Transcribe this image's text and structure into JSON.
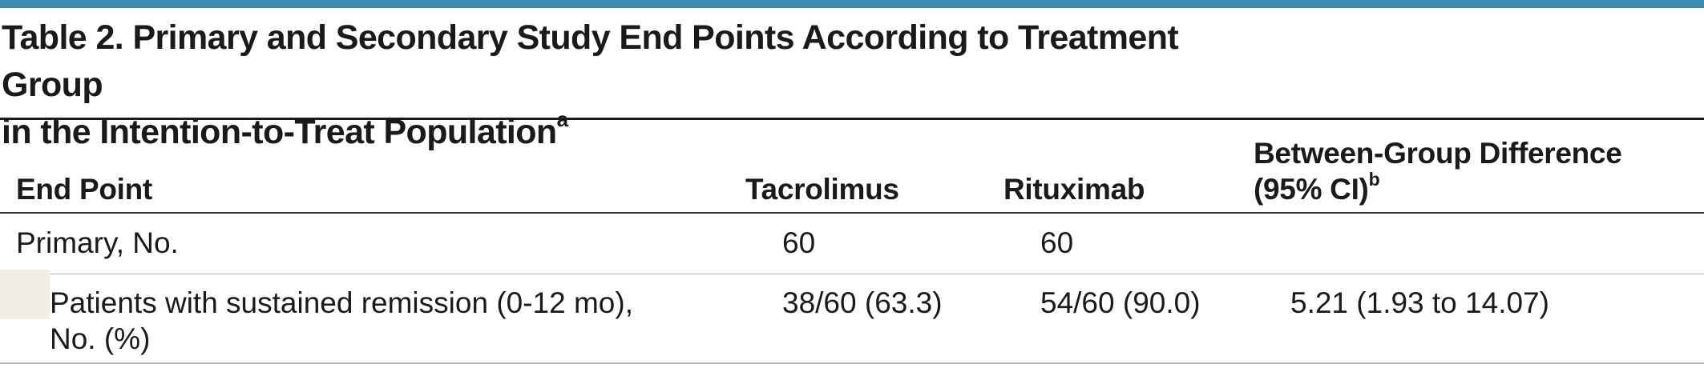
{
  "table": {
    "title_line1": "Table 2. Primary and Secondary Study End Points According to Treatment Group",
    "title_line2": "in the Intention-to-Treat Population",
    "title_footnote": "a",
    "columns": {
      "end_point": "End Point",
      "tacrolimus": "Tacrolimus",
      "rituximab": "Rituximab",
      "difference_line1": "Between-Group Difference",
      "difference_line2": "(95% CI)",
      "difference_footnote": "b"
    },
    "rows": [
      {
        "end_point": "Primary, No.",
        "tacrolimus": "60",
        "rituximab": "60",
        "difference": ""
      },
      {
        "end_point_line1": "Patients with sustained remission (0-12 mo),",
        "end_point_line2": "No. (%)",
        "tacrolimus": "38/60 (63.3)",
        "rituximab": "54/60 (90.0)",
        "difference": "5.21 (1.93 to 14.07)"
      }
    ],
    "colors": {
      "top_rule": "#3a8fb0",
      "indent_shade": "#f1eee6"
    }
  }
}
